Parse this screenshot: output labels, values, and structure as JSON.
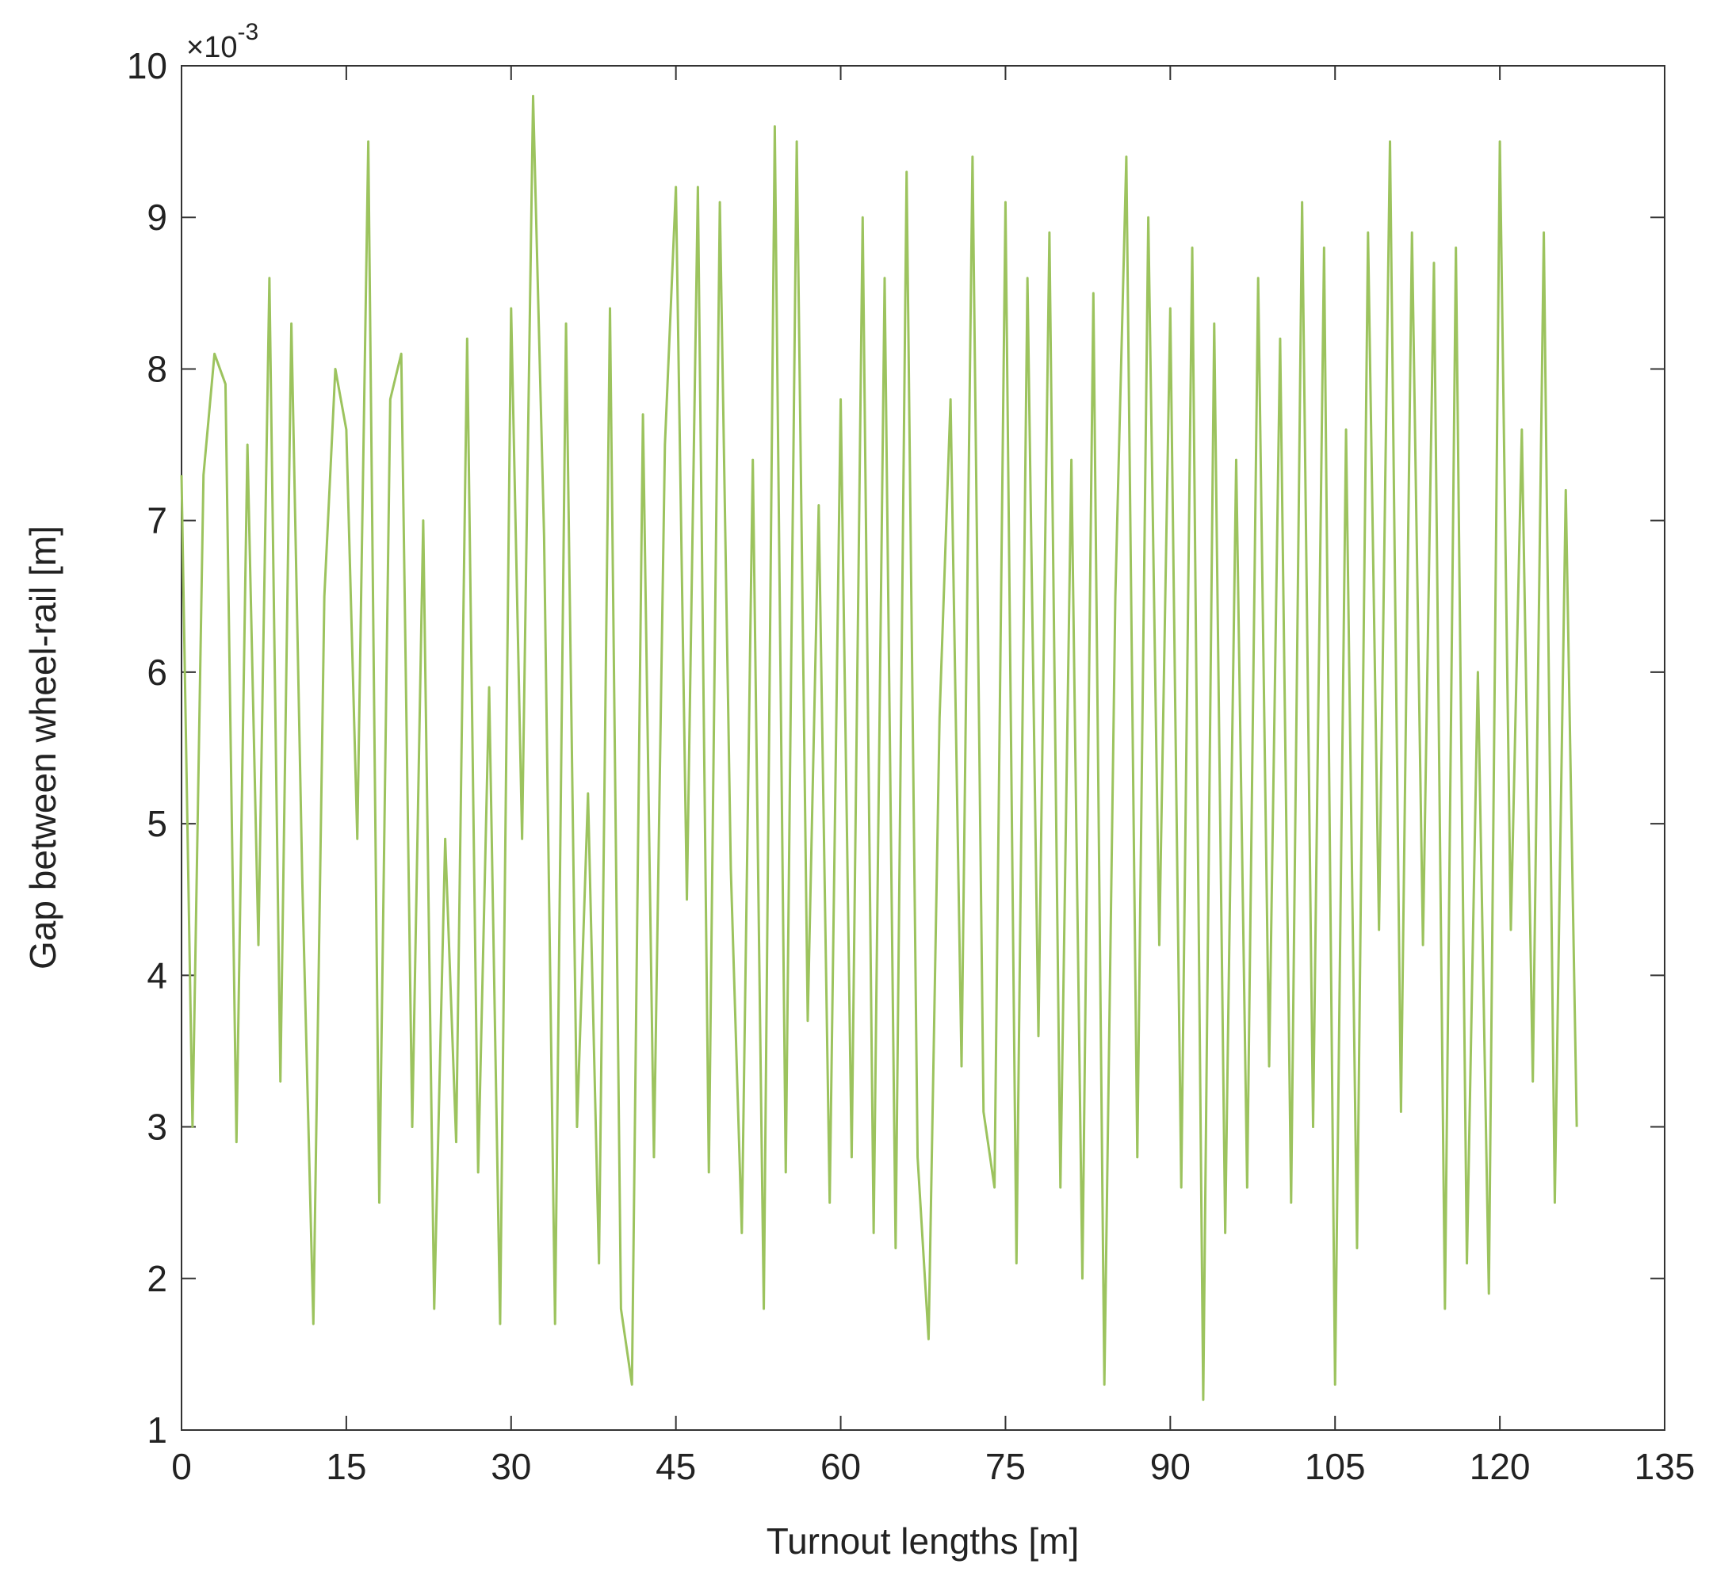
{
  "chart_data": {
    "type": "line",
    "xlabel": "Turnout lengths [m]",
    "ylabel": "Gap between wheel-rail [m]",
    "y_multiplier": {
      "base": "×10",
      "exponent": "-3"
    },
    "x": [
      0,
      1,
      2,
      3,
      4,
      5,
      6,
      7,
      8,
      9,
      10,
      11,
      12,
      13,
      14,
      15,
      16,
      17,
      18,
      19,
      20,
      21,
      22,
      23,
      24,
      25,
      26,
      27,
      28,
      29,
      30,
      31,
      32,
      33,
      34,
      35,
      36,
      37,
      38,
      39,
      40,
      41,
      42,
      43,
      44,
      45,
      46,
      47,
      48,
      49,
      50,
      51,
      52,
      53,
      54,
      55,
      56,
      57,
      58,
      59,
      60,
      61,
      62,
      63,
      64,
      65,
      66,
      67,
      68,
      69,
      70,
      71,
      72,
      73,
      74,
      75,
      76,
      77,
      78,
      79,
      80,
      81,
      82,
      83,
      84,
      85,
      86,
      87,
      88,
      89,
      90,
      91,
      92,
      93,
      94,
      95,
      96,
      97,
      98,
      99,
      100,
      101,
      102,
      103,
      104,
      105,
      106,
      107,
      108,
      109,
      110,
      111,
      112,
      113,
      114,
      115,
      116,
      117,
      118,
      119,
      120,
      121,
      122,
      123,
      124,
      125,
      126,
      127
    ],
    "series": [
      {
        "name": "Gap",
        "color": "#9cc35e",
        "values": [
          7.3,
          3.0,
          7.3,
          8.1,
          7.9,
          2.9,
          7.5,
          4.2,
          8.6,
          3.3,
          8.3,
          4.6,
          1.7,
          6.5,
          8.0,
          7.6,
          4.9,
          9.5,
          2.5,
          7.8,
          8.1,
          3.0,
          7.0,
          1.8,
          4.9,
          2.9,
          8.2,
          2.7,
          5.9,
          1.7,
          8.4,
          4.9,
          9.8,
          6.9,
          1.7,
          8.3,
          3.0,
          5.2,
          2.1,
          8.4,
          1.8,
          1.3,
          7.7,
          2.8,
          7.5,
          9.2,
          4.5,
          9.2,
          2.7,
          9.1,
          4.7,
          2.3,
          7.4,
          1.8,
          9.6,
          2.7,
          9.5,
          3.7,
          7.1,
          2.5,
          7.8,
          2.8,
          9.0,
          2.3,
          8.6,
          2.2,
          9.3,
          2.8,
          1.6,
          5.7,
          7.8,
          3.4,
          9.4,
          3.1,
          2.6,
          9.1,
          2.1,
          8.6,
          3.6,
          8.9,
          2.6,
          7.4,
          2.0,
          8.5,
          1.3,
          6.5,
          9.4,
          2.8,
          9.0,
          4.2,
          8.4,
          2.6,
          8.8,
          1.2,
          8.3,
          2.3,
          7.4,
          2.6,
          8.6,
          3.4,
          8.2,
          2.5,
          9.1,
          3.0,
          8.8,
          1.3,
          7.6,
          2.2,
          8.9,
          4.3,
          9.5,
          3.1,
          8.9,
          4.2,
          8.7,
          1.8,
          8.8,
          2.1,
          6.0,
          1.9,
          9.5,
          4.3,
          7.6,
          3.3,
          8.9,
          2.5,
          7.2,
          3.0
        ]
      }
    ],
    "xlim": [
      0,
      135
    ],
    "xticks": [
      0,
      15,
      30,
      45,
      60,
      75,
      90,
      105,
      120,
      135
    ],
    "ylim": [
      1,
      10
    ],
    "yticks": [
      1,
      2,
      3,
      4,
      5,
      6,
      7,
      8,
      9,
      10
    ],
    "grid": false
  }
}
